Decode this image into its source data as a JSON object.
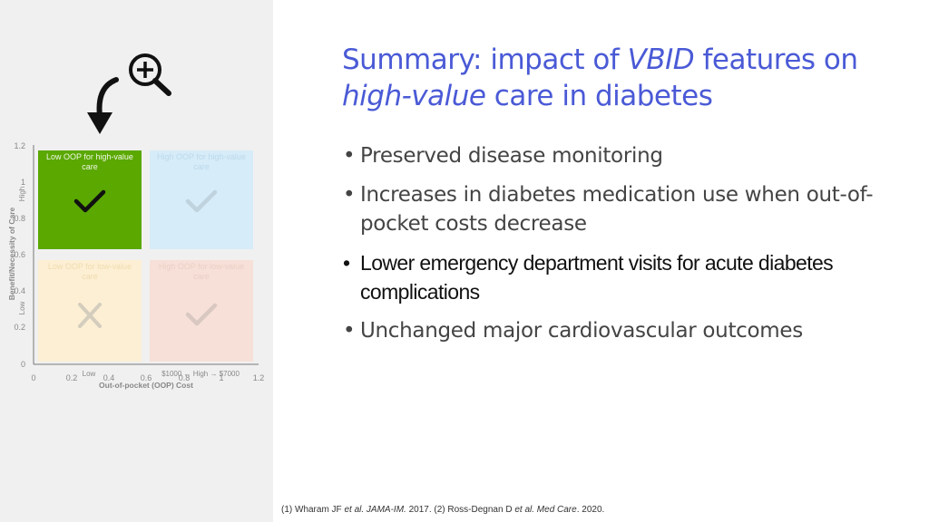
{
  "slide": {
    "title_part1": "Summary: impact of ",
    "title_em1": "VBID",
    "title_part2": " features on ",
    "title_em2": "high-value",
    "title_part3": " care in diabetes",
    "bullets": [
      "Preserved disease monitoring",
      "Increases in diabetes medication use when out-of-pocket costs decrease",
      "Lower emergency department visits for acute diabetes complications",
      "Unchanged major cardiovascular outcomes"
    ],
    "bullet_symbol": "•",
    "footnote_parts": [
      "(1) Wharam JF ",
      "et al.",
      " ",
      "JAMA-IM.",
      " 2017. (2) Ross-Degnan D ",
      "et al.",
      " ",
      "Med Care",
      ". 2020."
    ]
  },
  "figure": {
    "y_ticks": [
      "1.2",
      "1",
      "0.8",
      "0.6",
      "0.4",
      "0.2",
      "0"
    ],
    "x_ticks": [
      "0",
      "0.2",
      "0.4",
      "0.6",
      "0.8",
      "1",
      "1.2"
    ],
    "y_axis_title": "Benefit/Necessity of Care",
    "y_low": "Low",
    "y_high": "High",
    "x_axis_title": "Out-of-pocket (OOP) Cost",
    "x_low": "Low",
    "x_high": "$1000 ← High → $7000",
    "quadrants": {
      "top_left": "Low OOP for high-value care",
      "top_right": "High OOP for high-value care",
      "bottom_left": "Low OOP for low-value care",
      "bottom_right": "High OOP for low-value care"
    },
    "icons": [
      "zoom-in-icon",
      "arrow-down-icon",
      "checkmark-icon",
      "x-mark-icon"
    ],
    "colors": {
      "title": "#4a5ad6",
      "high_value_low_oop": "#5aa800",
      "high_value_high_oop": "#d6ecf8",
      "low_value_low_oop": "#fcefd4",
      "low_value_high_oop": "#f7e0d8"
    }
  }
}
